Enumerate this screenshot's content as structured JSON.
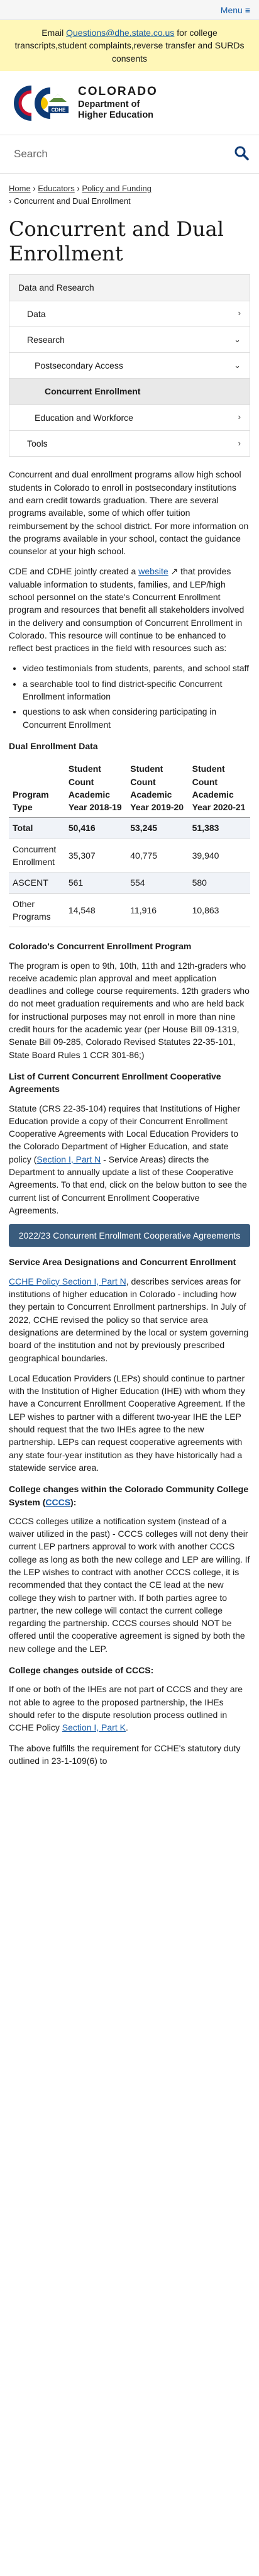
{
  "header": {
    "menu_label": "Menu",
    "notice_prefix": "Email ",
    "notice_email": "Questions@dhe.state.co.us",
    "notice_suffix": " for college transcripts,student complaints,reverse transfer and SURDs consents",
    "logo_line1": "COLORADO",
    "logo_line2a": "Department of",
    "logo_line2b": "Higher Education",
    "logo_badge": "CDHE"
  },
  "search": {
    "placeholder": "Search"
  },
  "breadcrumb": {
    "home": "Home",
    "educators": "Educators",
    "policy": "Policy and Funding",
    "current": "Concurrent and Dual Enrollment",
    "sep": " › "
  },
  "page_title": "Concurrent and Dual Enrollment",
  "sidenav": {
    "items": [
      {
        "label": "Data and Research",
        "chev": ""
      },
      {
        "label": "Data",
        "chev": "›"
      },
      {
        "label": "Research",
        "chev": "⌄"
      },
      {
        "label": "Postsecondary Access",
        "chev": "⌄"
      },
      {
        "label": "Concurrent Enrollment",
        "chev": ""
      },
      {
        "label": "Education and Workforce",
        "chev": "›"
      },
      {
        "label": "Tools",
        "chev": "›"
      }
    ]
  },
  "intro_p1": "Concurrent and dual enrollment programs allow high school students in Colorado to enroll in postsecondary institutions and earn credit towards graduation. There are several programs available, some of which offer tuition reimbursement by the school district. For more information on the programs available in your school, contact the guidance counselor at your high school.",
  "intro_p2a": "CDE and CDHE jointly created a ",
  "intro_p2_link": "website",
  "intro_p2b": " that provides valuable information to students, families, and LEP/high school personnel on the state's Concurrent Enrollment program and resources that benefit all stakeholders involved in the delivery and consumption of Concurrent Enrollment in Colorado. This resource will continue to be enhanced to reflect best practices in the field with resources such as:",
  "bullets": [
    "video testimonials from students, parents, and school staff",
    "a searchable tool to find district-specific Concurrent Enrollment information",
    "questions to ask when considering participating in Concurrent Enrollment"
  ],
  "table_title": "Dual Enrollment Data",
  "table": {
    "headers": [
      "Program Type",
      "Student Count Academic Year 2018-19",
      "Student Count Academic Year 2019-20",
      "Student Count Academic Year 2020-21"
    ],
    "rows": [
      [
        "Total",
        "50,416",
        "53,245",
        "51,383"
      ],
      [
        "Concurrent Enrollment",
        "35,307",
        "40,775",
        "39,940"
      ],
      [
        "ASCENT",
        "561",
        "554",
        "580"
      ],
      [
        "Other Programs",
        "14,548",
        "11,916",
        "10,863"
      ]
    ]
  },
  "ce_program_title": "Colorado's Concurrent Enrollment Program",
  "ce_program_p": "The program is open to 9th, 10th, 11th and 12th-graders who receive academic plan approval and meet application deadlines and college course requirements. 12th graders who do not meet graduation requirements and who are held back for instructional purposes may not enroll in more than nine credit hours for the academic year (per House Bill 09-1319, Senate Bill 09-285, Colorado Revised Statutes 22-35-101, State Board Rules 1 CCR 301-86;)",
  "list_title": "List of Current Concurrent Enrollment Cooperative Agreements",
  "list_pa": "Statute (CRS 22-35-104) requires that Institutions of Higher Education provide a copy of their Concurrent Enrollment Cooperative Agreements with Local Education Providers to the Colorado Department of Higher Education, and state policy (",
  "list_link": "Section I, Part N",
  "list_pb": " - Service Areas) directs the Department to annually update a list of these Cooperative Agreements. To that end, click on the below button to see the current list of Concurrent Enrollment Cooperative Agreements.",
  "coop_button": "2022/23 Concurrent Enrollment Cooperative Agreements",
  "service_title": "Service Area Designations and Concurrent Enrollment",
  "service_link": "CCHE Policy Section I, Part N",
  "service_p1": ", describes services areas for institutions of higher education in Colorado - including how they pertain to Concurrent Enrollment partnerships. In July of 2022, CCHE revised the policy so that service area designations are determined by the local or system governing board of the institution and not by previously prescribed geographical boundaries.",
  "service_p2": "Local Education Providers (LEPs) should continue to partner with the Institution of Higher Education (IHE) with whom they have a Concurrent Enrollment Cooperative Agreement. If the LEP wishes to partner with a different two-year IHE the LEP should request that the two IHEs agree to the new partnership. LEPs can request cooperative agreements with any state four-year institution as they have historically had a statewide service area.",
  "cccs_title_a": "College changes within the Colorado Community College System (",
  "cccs_link": "CCCS",
  "cccs_title_b": "):",
  "cccs_p": "CCCS colleges utilize a notification system (instead of a waiver utilized in the past) - CCCS colleges will not deny their current LEP partners approval to work with another CCCS college as long as both the new college and LEP are willing. If the LEP wishes to contract with another CCCS college, it is recommended that they contact the CE lead at the new college they wish to partner with. If both parties agree to partner, the new college will contact the current college regarding the partnership. CCCS courses should NOT be offered until the cooperative agreement is signed by both the new college and the LEP.",
  "outside_title": "College changes outside of CCCS:",
  "outside_pa": "If one or both of the IHEs are not part of CCCS and they are not able to agree to the proposed partnership, the IHEs should refer to the dispute resolution process outlined in CCHE Policy ",
  "outside_link": "Section I, Part K",
  "outside_pb": ".",
  "final_p": "The above fulfills the requirement for CCHE's statutory duty outlined in 23-1-109(6) to"
}
